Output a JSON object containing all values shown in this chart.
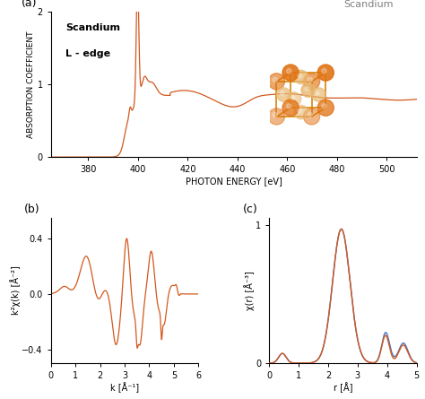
{
  "line_color": "#d2581e",
  "line_color2": "#4472c4",
  "bg_color": "#ffffff",
  "panel_a_xlabel": "PHOTON ENERGY [eV]",
  "panel_a_ylabel": "ABSORPTION COEFFICIENT",
  "panel_a_xlim": [
    365,
    512
  ],
  "panel_a_ylim": [
    0,
    2
  ],
  "panel_a_xticks": [
    380,
    400,
    420,
    440,
    460,
    480,
    500
  ],
  "panel_a_yticks": [
    0,
    1,
    2
  ],
  "panel_b_xlabel": "k [Å⁻¹]",
  "panel_b_ylabel": "k²χ(k) [Å⁻²]",
  "panel_b_xlim": [
    0,
    6
  ],
  "panel_b_ylim": [
    -0.5,
    0.55
  ],
  "panel_b_xticks": [
    0,
    1,
    2,
    3,
    4,
    5,
    6
  ],
  "panel_b_yticks": [
    -0.4,
    0,
    0.4
  ],
  "panel_c_xlabel": "r [Å]",
  "panel_c_ylabel": "χ(r) [Å⁻³]",
  "panel_c_xlim": [
    0,
    5
  ],
  "panel_c_ylim": [
    0,
    1.05
  ],
  "panel_c_xticks": [
    0,
    1,
    2,
    3,
    4,
    5
  ],
  "panel_c_yticks": [
    0,
    1
  ],
  "title_text": "Scandium",
  "label_a": "(a)",
  "label_b": "(b)",
  "label_c": "(c)",
  "annotation_line1": "Scandium",
  "annotation_line2": "L - edge"
}
